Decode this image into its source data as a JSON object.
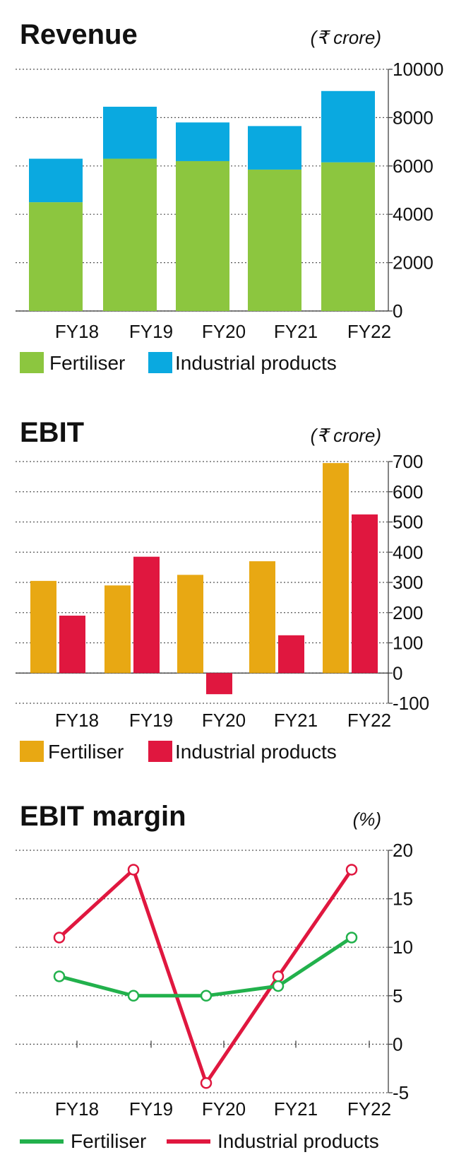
{
  "colors": {
    "fertiliser_revenue": "#8cc63f",
    "industrial_revenue": "#0aa9e0",
    "fertiliser_ebit": "#e8a813",
    "industrial_ebit": "#e0173f",
    "fertiliser_margin": "#22b14c",
    "industrial_margin": "#e0173f"
  },
  "chart_data": [
    {
      "type": "bar",
      "stacked": true,
      "title": "Revenue",
      "unit": "(₹ crore)",
      "categories": [
        "FY18",
        "FY19",
        "FY20",
        "FY21",
        "FY22"
      ],
      "series": [
        {
          "name": "Fertiliser",
          "values": [
            4500,
            6300,
            6200,
            5850,
            6150
          ]
        },
        {
          "name": "Industrial products",
          "values": [
            1800,
            2150,
            1600,
            1800,
            2950
          ]
        }
      ],
      "ylim": [
        0,
        10000
      ],
      "yticks": [
        "10000",
        "8000",
        "6000",
        "4000",
        "2000",
        "0"
      ],
      "grid": true,
      "legend": "bottom"
    },
    {
      "type": "bar",
      "stacked": false,
      "title": "EBIT",
      "unit": "(₹ crore)",
      "categories": [
        "FY18",
        "FY19",
        "FY20",
        "FY21",
        "FY22"
      ],
      "series": [
        {
          "name": "Fertiliser",
          "values": [
            305,
            290,
            325,
            370,
            695
          ]
        },
        {
          "name": "Industrial products",
          "values": [
            190,
            385,
            -70,
            125,
            525
          ]
        }
      ],
      "ylim": [
        -100,
        700
      ],
      "yticks": [
        "700",
        "600",
        "500",
        "400",
        "300",
        "200",
        "100",
        "0",
        "-100"
      ],
      "grid": true,
      "legend": "bottom"
    },
    {
      "type": "line",
      "title": "EBIT margin",
      "unit": "(%)",
      "categories": [
        "FY18",
        "FY19",
        "FY20",
        "FY21",
        "FY22"
      ],
      "series": [
        {
          "name": "Fertiliser",
          "values": [
            7,
            5,
            5,
            6,
            11
          ]
        },
        {
          "name": "Industrial products",
          "values": [
            11,
            18,
            -4,
            7,
            18
          ]
        }
      ],
      "ylim": [
        -5,
        20
      ],
      "yticks": [
        "20",
        "15",
        "10",
        "5",
        "0",
        "-5"
      ],
      "grid": true,
      "legend": "bottom"
    }
  ]
}
